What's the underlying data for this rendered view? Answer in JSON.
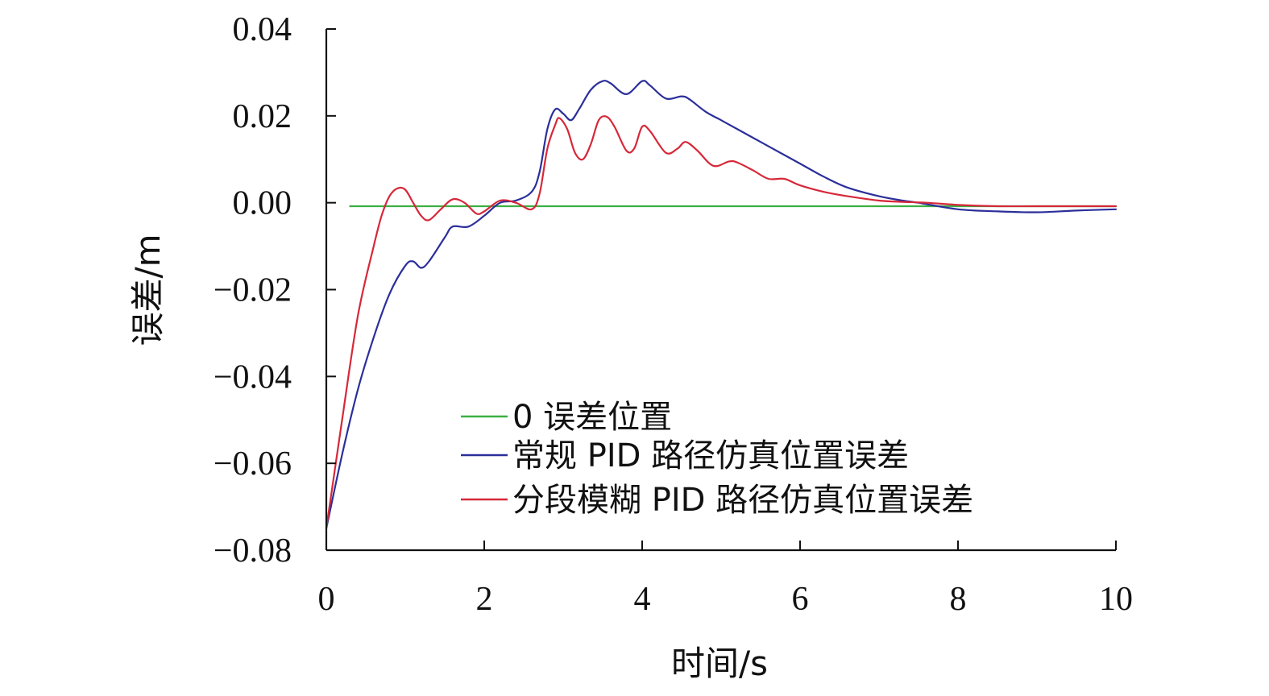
{
  "chart_data": {
    "type": "line",
    "title": "",
    "xlabel": "时间/s",
    "ylabel": "误差/m",
    "xlim": [
      0,
      10
    ],
    "ylim": [
      -0.08,
      0.04
    ],
    "xticks": [
      0,
      2,
      4,
      6,
      8,
      10
    ],
    "xtick_labels": [
      "0",
      "2",
      "4",
      "6",
      "8",
      "10"
    ],
    "yticks": [
      -0.08,
      -0.06,
      -0.04,
      -0.02,
      0.0,
      0.02,
      0.04
    ],
    "ytick_labels": [
      "−0.08",
      "−0.06",
      "−0.04",
      "−0.02",
      "0.00",
      "0.02",
      "0.04"
    ],
    "grid": false,
    "legend_position": "bottom-center",
    "series": [
      {
        "name": "0 误差位置",
        "color": "#3cb043",
        "x": [
          0.3,
          10
        ],
        "y": [
          -0.0008,
          -0.0008
        ]
      },
      {
        "name": "常规 PID 路径仿真位置误差",
        "color": "#2b2f9a",
        "x": [
          0,
          0.2,
          0.4,
          0.6,
          0.8,
          1.0,
          1.1,
          1.2,
          1.3,
          1.5,
          1.6,
          1.8,
          2.0,
          2.2,
          2.4,
          2.6,
          2.7,
          2.8,
          2.9,
          3.0,
          3.1,
          3.2,
          3.35,
          3.5,
          3.6,
          3.8,
          4.0,
          4.1,
          4.3,
          4.5,
          4.6,
          4.8,
          5.0,
          5.2,
          5.5,
          5.8,
          6.0,
          6.3,
          6.6,
          7.0,
          7.3,
          7.5,
          8.0,
          8.5,
          9.0,
          9.5,
          10.0
        ],
        "y": [
          -0.075,
          -0.058,
          -0.043,
          -0.031,
          -0.021,
          -0.0145,
          -0.0135,
          -0.015,
          -0.0135,
          -0.008,
          -0.0055,
          -0.0055,
          -0.003,
          0.0,
          0.0005,
          0.0025,
          0.007,
          0.017,
          0.0215,
          0.0205,
          0.019,
          0.0215,
          0.026,
          0.028,
          0.0275,
          0.025,
          0.028,
          0.027,
          0.024,
          0.0245,
          0.0238,
          0.021,
          0.019,
          0.017,
          0.014,
          0.011,
          0.009,
          0.006,
          0.0035,
          0.0015,
          0.0005,
          0.0,
          -0.0015,
          -0.002,
          -0.0022,
          -0.0018,
          -0.0015
        ]
      },
      {
        "name": "分段模糊 PID 路径仿真位置误差",
        "color": "#d62839",
        "x": [
          0,
          0.2,
          0.4,
          0.6,
          0.7,
          0.8,
          0.9,
          1.0,
          1.1,
          1.2,
          1.3,
          1.45,
          1.6,
          1.75,
          1.9,
          2.0,
          2.2,
          2.4,
          2.6,
          2.7,
          2.8,
          2.9,
          2.95,
          3.05,
          3.15,
          3.25,
          3.35,
          3.45,
          3.55,
          3.65,
          3.8,
          3.9,
          4.0,
          4.1,
          4.3,
          4.45,
          4.55,
          4.7,
          4.9,
          5.1,
          5.2,
          5.4,
          5.6,
          5.8,
          6.0,
          6.3,
          6.6,
          7.0,
          7.3,
          7.6,
          8.0,
          8.5,
          9.0,
          9.5,
          10.0
        ],
        "y": [
          -0.075,
          -0.05,
          -0.026,
          -0.01,
          -0.003,
          0.0015,
          0.0033,
          0.003,
          0.0,
          -0.003,
          -0.004,
          -0.0015,
          0.0008,
          0.0,
          -0.0025,
          -0.002,
          0.0005,
          0.0,
          -0.0015,
          0.002,
          0.0125,
          0.018,
          0.0195,
          0.017,
          0.0115,
          0.01,
          0.0135,
          0.019,
          0.0198,
          0.0175,
          0.012,
          0.0125,
          0.0175,
          0.0165,
          0.0115,
          0.0125,
          0.014,
          0.012,
          0.0085,
          0.0095,
          0.0093,
          0.0075,
          0.0055,
          0.0055,
          0.004,
          0.0025,
          0.0015,
          0.0005,
          0.0002,
          0.0,
          -0.0005,
          -0.0008,
          -0.0008,
          -0.0008,
          -0.0008
        ]
      }
    ]
  }
}
